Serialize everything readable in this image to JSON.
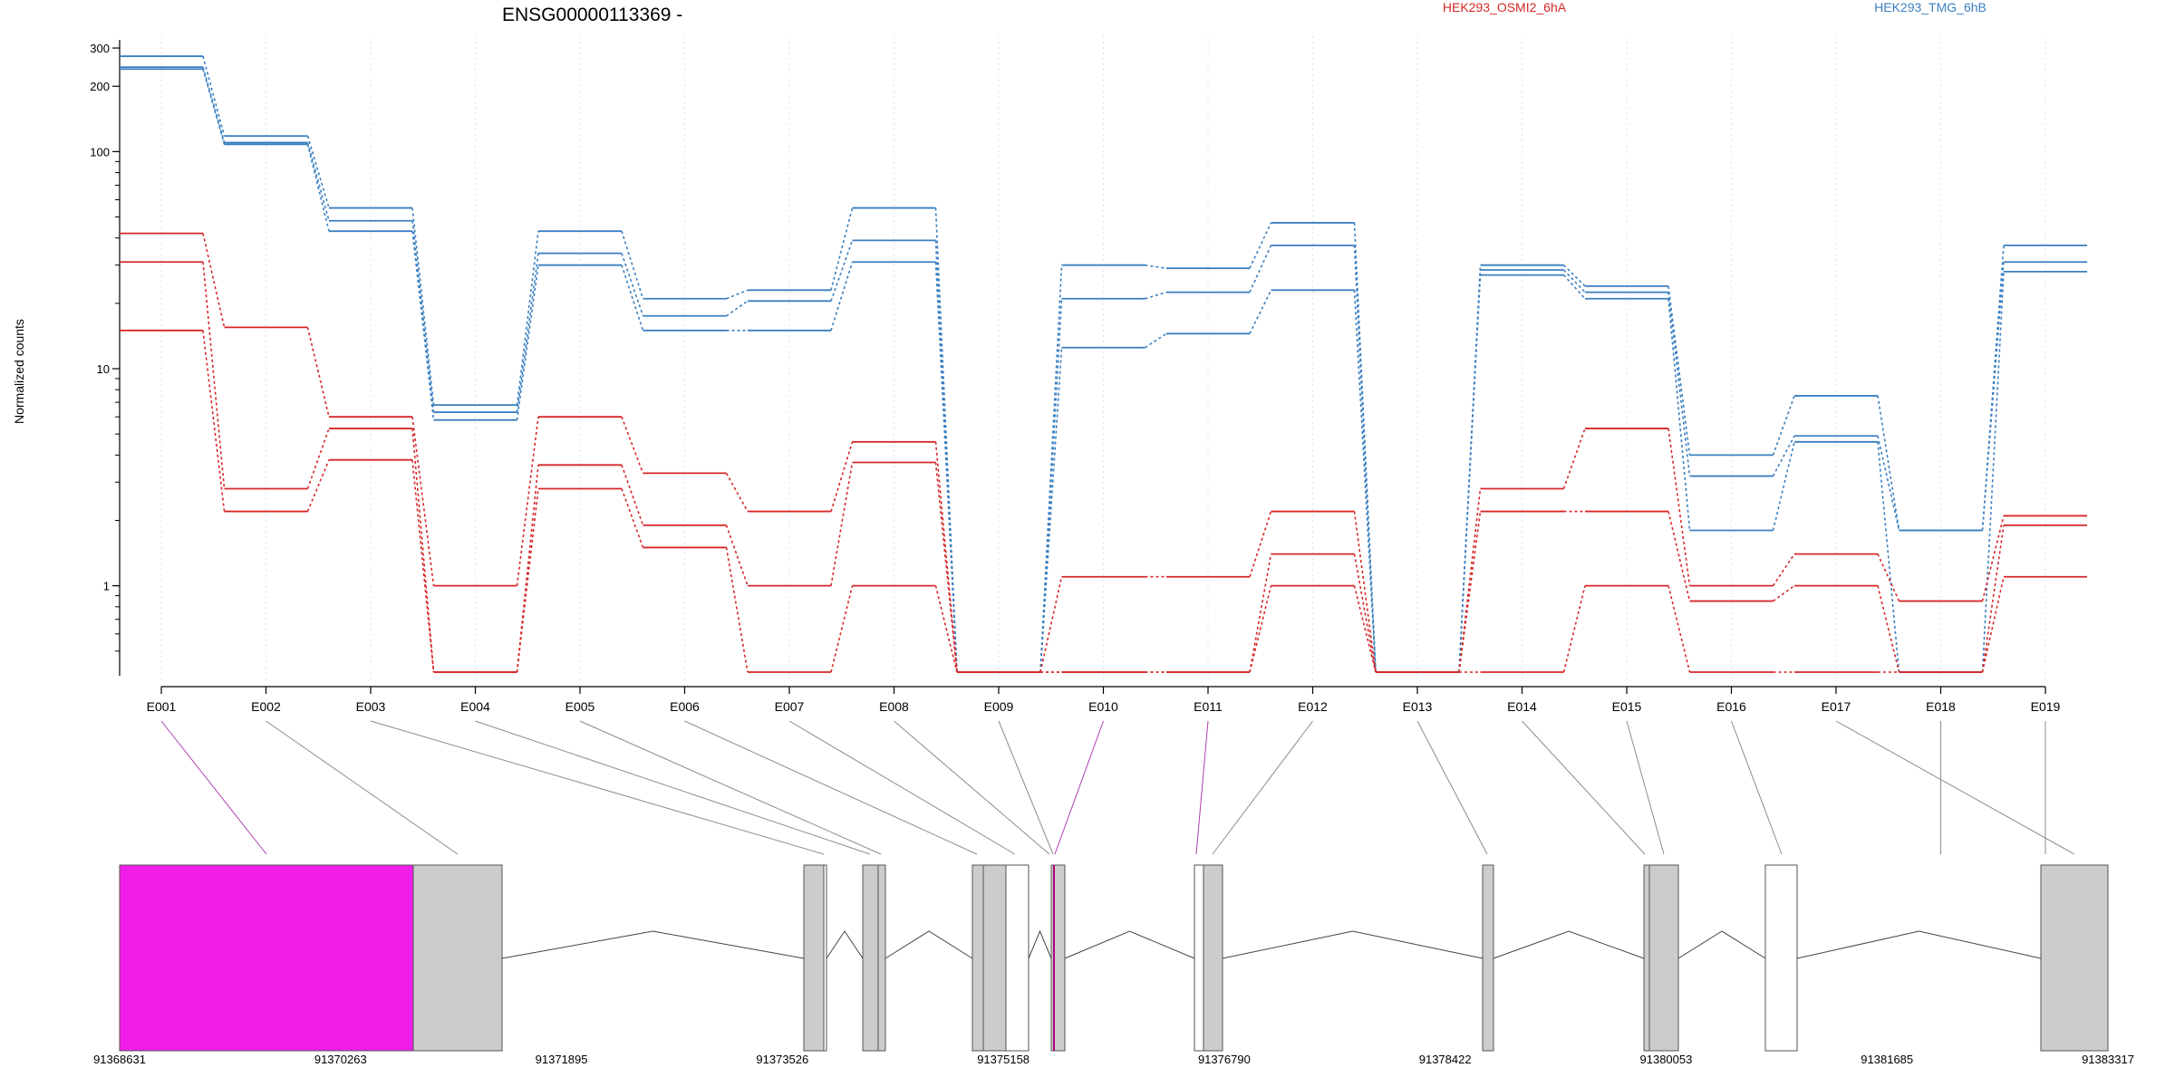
{
  "chart_data": {
    "type": "line",
    "title": "ENSG00000113369 -",
    "ylabel": "Normalized counts",
    "yscale": "log",
    "ylim": [
      0.4,
      340
    ],
    "y_ticks": [
      1,
      10,
      100,
      200,
      300
    ],
    "categories": [
      "E001",
      "E002",
      "E003",
      "E004",
      "E005",
      "E006",
      "E007",
      "E008",
      "E009",
      "E010",
      "E011",
      "E012",
      "E013",
      "E014",
      "E015",
      "E016",
      "E017",
      "E018",
      "E019"
    ],
    "legend": [
      {
        "label": "HEK293_OSMI2_6hA",
        "color": "#d62728"
      },
      {
        "label": "HEK293_TMG_6hB",
        "color": "#3a7fc0"
      }
    ],
    "series": [
      {
        "group": "HEK293_TMG_6hB",
        "color": "#3a7fc0",
        "values": [
          275,
          118,
          55,
          6.8,
          43,
          21,
          23,
          55,
          0.4,
          30,
          29,
          47,
          0.4,
          30,
          24,
          4,
          7.5,
          1.8,
          37
        ]
      },
      {
        "group": "HEK293_TMG_6hB",
        "color": "#3a7fc0",
        "values": [
          245,
          110,
          48,
          6.3,
          34,
          17.5,
          20.5,
          39,
          0.4,
          21,
          22.5,
          37,
          0.4,
          28.5,
          22.5,
          3.2,
          4.9,
          1.8,
          31
        ]
      },
      {
        "group": "HEK293_TMG_6hB",
        "color": "#3a7fc0",
        "values": [
          240,
          108,
          43,
          5.8,
          30,
          15,
          15,
          31,
          0.4,
          12.5,
          14.5,
          23,
          0.4,
          27,
          21,
          1.8,
          4.6,
          0.4,
          28
        ]
      },
      {
        "group": "HEK293_OSMI2_6hA",
        "color": "#d62728",
        "values": [
          42,
          15.5,
          6,
          1,
          6,
          3.3,
          2.2,
          4.6,
          0.4,
          1.1,
          1.1,
          2.2,
          0.4,
          2.8,
          5.3,
          1,
          1.4,
          0.85,
          2.1
        ]
      },
      {
        "group": "HEK293_OSMI2_6hA",
        "color": "#d62728",
        "values": [
          31,
          2.8,
          5.3,
          0.4,
          3.6,
          1.9,
          1,
          3.7,
          0.4,
          0.4,
          0.4,
          1.4,
          0.4,
          2.2,
          2.2,
          0.85,
          1,
          0.4,
          1.9
        ]
      },
      {
        "group": "HEK293_OSMI2_6hA",
        "color": "#d62728",
        "values": [
          15,
          2.2,
          3.8,
          0.4,
          2.8,
          1.5,
          0.4,
          1,
          0.4,
          0.4,
          0.4,
          1,
          0.4,
          0.4,
          1,
          0.4,
          0.4,
          0.4,
          1.1
        ]
      }
    ],
    "highlighted_exons": [
      "E001",
      "E010",
      "E011"
    ],
    "gene_model": {
      "coord_ticks": [
        "91368631",
        "91370263",
        "91371895",
        "91373526",
        "91375158",
        "91376790",
        "91378422",
        "91380053",
        "91381685",
        "91383317"
      ],
      "exon_fill_colors": [
        "#f01ee8",
        "#cccccc",
        "#ffffff"
      ]
    }
  }
}
